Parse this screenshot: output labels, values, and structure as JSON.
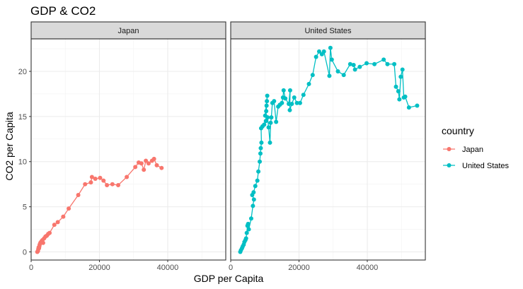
{
  "chart_data": {
    "type": "line",
    "title": "GDP & CO2",
    "xlabel": "GDP per Capita",
    "ylabel": "CO2 per Capita",
    "xlim": [
      0,
      57000
    ],
    "ylim": [
      -0.9,
      23.6
    ],
    "x_ticks": [
      0,
      20000,
      40000
    ],
    "y_ticks": [
      0,
      5,
      10,
      15,
      20
    ],
    "grid": true,
    "legend_position": "right",
    "legend": {
      "title": "country",
      "entries": [
        "Japan",
        "United States"
      ]
    },
    "panels": [
      {
        "label": "Japan",
        "series": [
          {
            "name": "Japan",
            "color": "#F8766D",
            "points": [
              [
                1800,
                0.0
              ],
              [
                2000,
                0.1
              ],
              [
                2100,
                0.3
              ],
              [
                2200,
                0.5
              ],
              [
                2300,
                0.4
              ],
              [
                2400,
                0.6
              ],
              [
                2500,
                0.8
              ],
              [
                2700,
                1.0
              ],
              [
                2900,
                1.1
              ],
              [
                3100,
                1.2
              ],
              [
                3300,
                1.3
              ],
              [
                3500,
                1.0
              ],
              [
                3800,
                1.5
              ],
              [
                4200,
                1.7
              ],
              [
                4600,
                1.8
              ],
              [
                5000,
                2.0
              ],
              [
                5400,
                2.1
              ],
              [
                6800,
                3.0
              ],
              [
                7800,
                3.3
              ],
              [
                9400,
                3.9
              ],
              [
                11000,
                4.8
              ],
              [
                13800,
                6.3
              ],
              [
                15800,
                7.5
              ],
              [
                17500,
                7.7
              ],
              [
                17800,
                8.3
              ],
              [
                18800,
                8.1
              ],
              [
                20200,
                8.2
              ],
              [
                21200,
                7.9
              ],
              [
                22200,
                7.4
              ],
              [
                23800,
                7.5
              ],
              [
                25500,
                7.4
              ],
              [
                28000,
                8.3
              ],
              [
                30500,
                9.4
              ],
              [
                31500,
                9.9
              ],
              [
                32300,
                9.8
              ],
              [
                33000,
                9.1
              ],
              [
                33600,
                10.1
              ],
              [
                34400,
                9.8
              ],
              [
                35400,
                10.1
              ],
              [
                36000,
                10.3
              ],
              [
                36800,
                9.6
              ],
              [
                38200,
                9.3
              ]
            ]
          }
        ]
      },
      {
        "label": "United States",
        "series": [
          {
            "name": "United States",
            "color": "#00BFC4",
            "points": [
              [
                2800,
                0.0
              ],
              [
                3000,
                0.2
              ],
              [
                3300,
                0.4
              ],
              [
                3500,
                0.6
              ],
              [
                3800,
                0.8
              ],
              [
                4000,
                1.1
              ],
              [
                4300,
                1.3
              ],
              [
                4500,
                1.5
              ],
              [
                4700,
                2.1
              ],
              [
                4900,
                2.9
              ],
              [
                5100,
                3.1
              ],
              [
                5300,
                2.5
              ],
              [
                6000,
                3.7
              ],
              [
                6500,
                5.1
              ],
              [
                6800,
                5.8
              ],
              [
                6300,
                6.3
              ],
              [
                6700,
                6.6
              ],
              [
                7200,
                7.3
              ],
              [
                7800,
                7.9
              ],
              [
                8100,
                8.9
              ],
              [
                8500,
                10.0
              ],
              [
                8700,
                10.9
              ],
              [
                8800,
                11.5
              ],
              [
                9000,
                12.1
              ],
              [
                8900,
                13.7
              ],
              [
                9300,
                13.9
              ],
              [
                9800,
                14.1
              ],
              [
                10300,
                14.5
              ],
              [
                10400,
                15.6
              ],
              [
                10500,
                16.2
              ],
              [
                10600,
                16.7
              ],
              [
                10700,
                17.3
              ],
              [
                10100,
                15.1
              ],
              [
                10800,
                14.9
              ],
              [
                11100,
                13.8
              ],
              [
                11500,
                12.1
              ],
              [
                11700,
                14.3
              ],
              [
                11900,
                14.9
              ],
              [
                12200,
                16.5
              ],
              [
                12700,
                16.7
              ],
              [
                13300,
                14.4
              ],
              [
                13900,
                16.1
              ],
              [
                14400,
                16.3
              ],
              [
                15000,
                16.5
              ],
              [
                15300,
                17.1
              ],
              [
                15500,
                17.9
              ],
              [
                16000,
                17.0
              ],
              [
                17000,
                16.4
              ],
              [
                17400,
                17.9
              ],
              [
                17300,
                15.7
              ],
              [
                17900,
                16.4
              ],
              [
                18600,
                17.1
              ],
              [
                19400,
                16.5
              ],
              [
                20300,
                16.5
              ],
              [
                21300,
                17.4
              ],
              [
                22900,
                18.6
              ],
              [
                24000,
                19.6
              ],
              [
                25000,
                21.6
              ],
              [
                25900,
                22.2
              ],
              [
                26700,
                21.9
              ],
              [
                27300,
                22.2
              ],
              [
                28900,
                19.5
              ],
              [
                29200,
                22.6
              ],
              [
                29600,
                21.3
              ],
              [
                31400,
                20.0
              ],
              [
                33100,
                19.6
              ],
              [
                35000,
                20.8
              ],
              [
                36000,
                20.7
              ],
              [
                36400,
                20.2
              ],
              [
                37800,
                20.5
              ],
              [
                39800,
                20.9
              ],
              [
                42100,
                20.8
              ],
              [
                44800,
                21.3
              ],
              [
                45900,
                20.8
              ],
              [
                47900,
                20.8
              ],
              [
                48400,
                18.3
              ],
              [
                49100,
                17.8
              ],
              [
                49400,
                16.9
              ],
              [
                49800,
                19.4
              ],
              [
                50300,
                20.2
              ],
              [
                50700,
                17.1
              ],
              [
                51100,
                17.2
              ],
              [
                52200,
                16.0
              ],
              [
                54600,
                16.2
              ]
            ]
          }
        ]
      }
    ]
  }
}
